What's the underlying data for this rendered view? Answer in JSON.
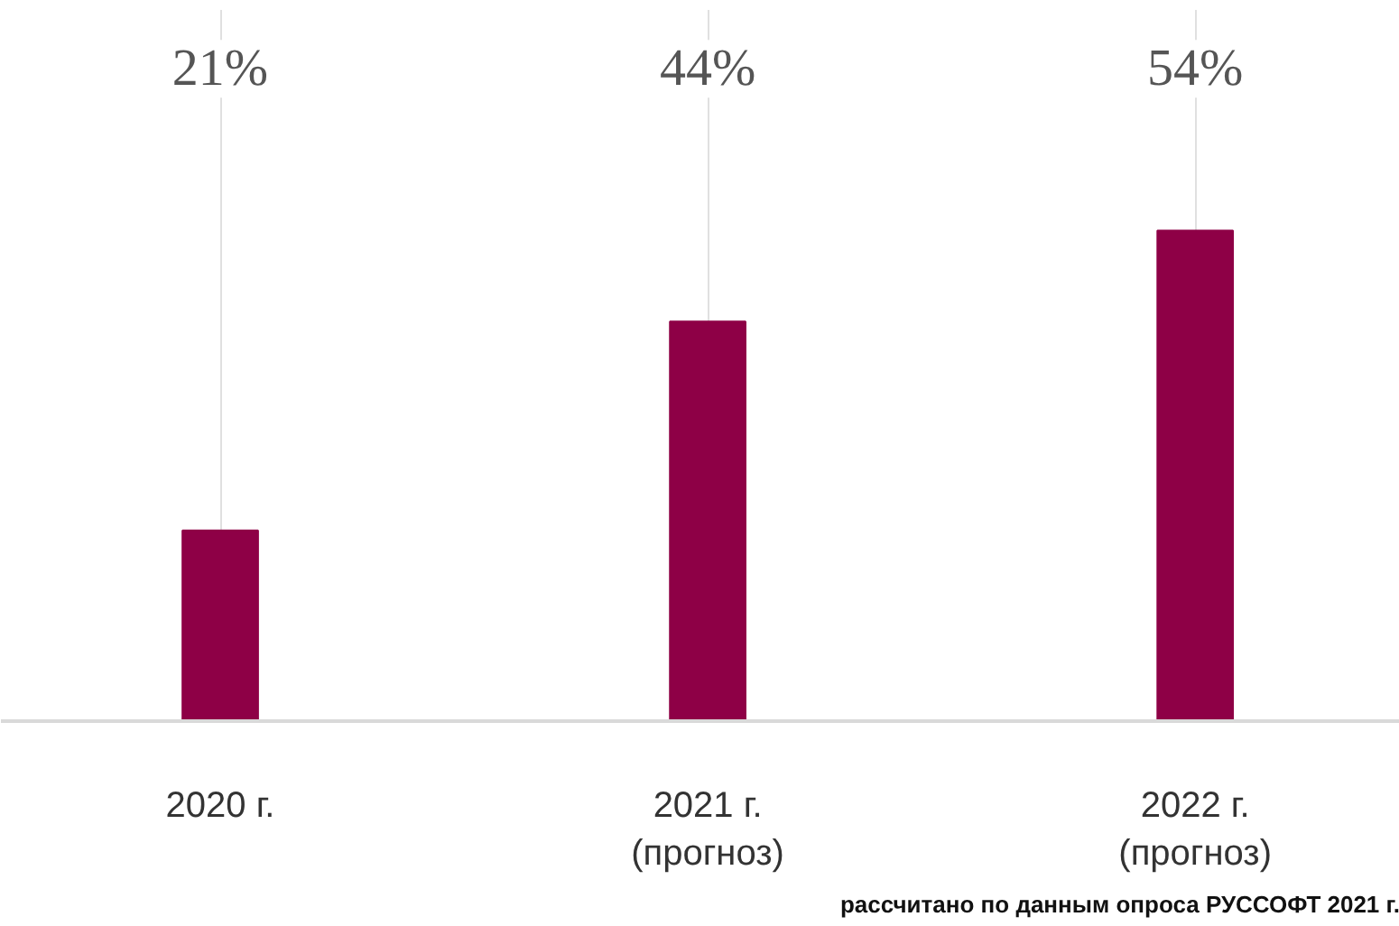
{
  "chart_data": {
    "type": "bar",
    "categories": [
      "2020 г.",
      "2021 г.\n(прогноз)",
      "2022 г.\n(прогноз)"
    ],
    "values": [
      21,
      44,
      54
    ],
    "color": "#8e0046",
    "data_labels": true,
    "value_labels": [
      "21%",
      "44%",
      "54%"
    ],
    "grid": "x",
    "annotations": [
      "рассчитано по данным опроса РУССОФТ 2021 г."
    ]
  }
}
